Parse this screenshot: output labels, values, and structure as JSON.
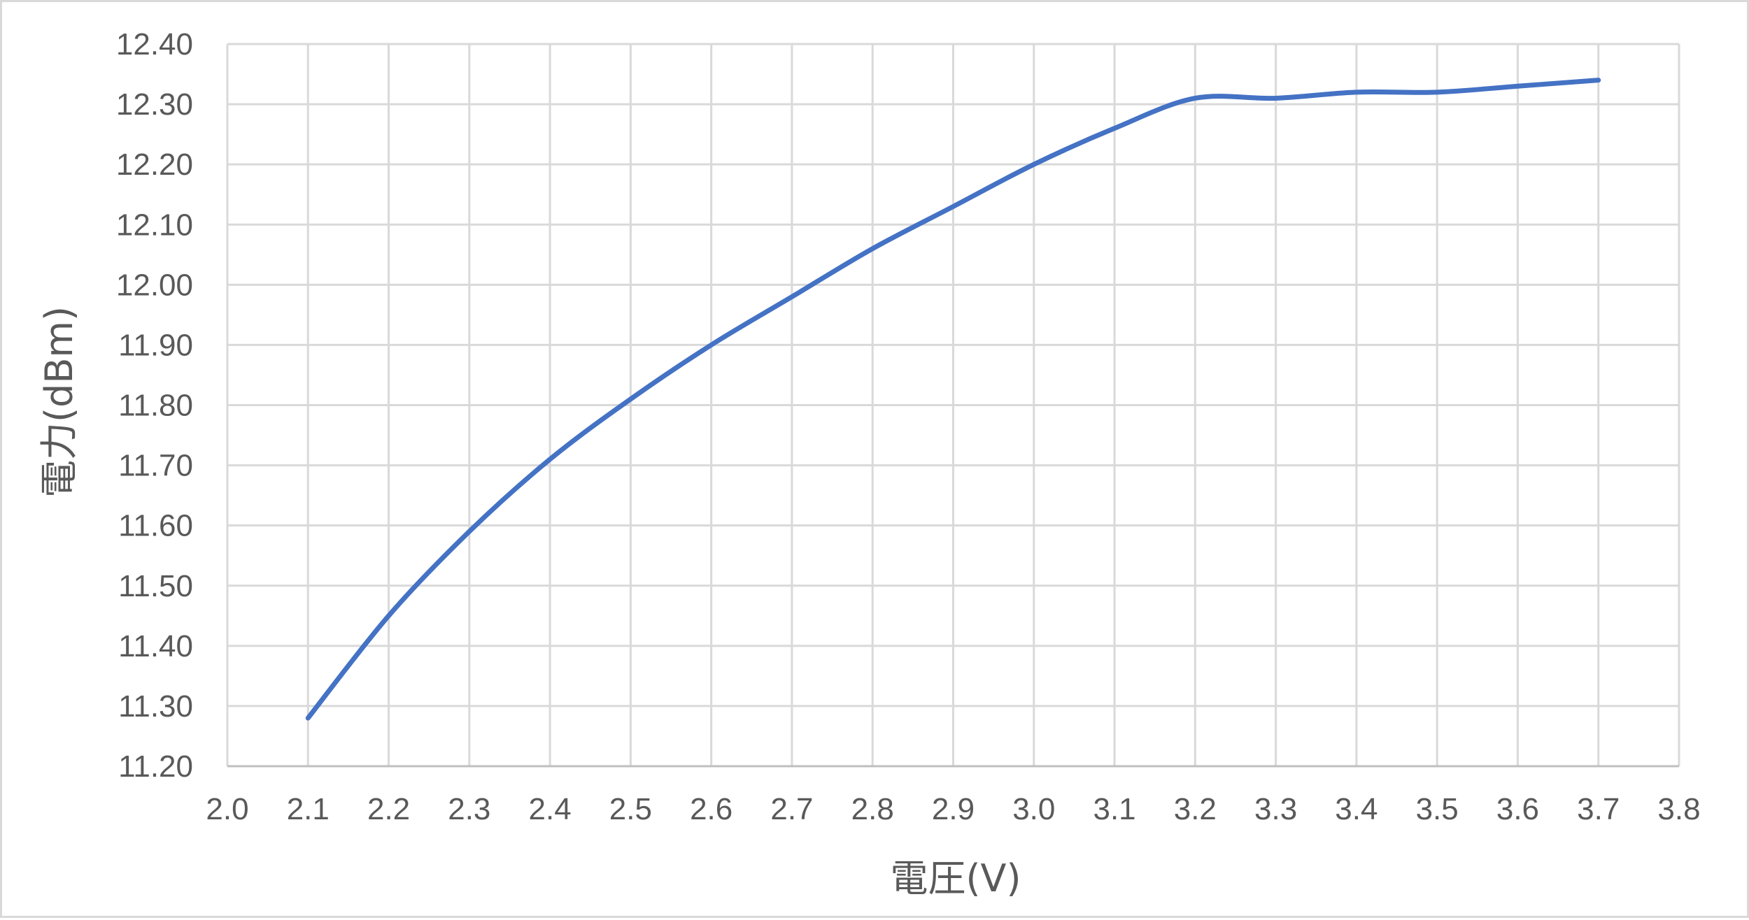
{
  "chart_data": {
    "type": "line",
    "title": "",
    "xlabel": "電圧(V)",
    "ylabel": "電力(dBm)",
    "xlim": [
      2.0,
      3.8
    ],
    "ylim": [
      11.2,
      12.4
    ],
    "x_ticks": [
      "2.0",
      "2.1",
      "2.2",
      "2.3",
      "2.4",
      "2.5",
      "2.6",
      "2.7",
      "2.8",
      "2.9",
      "3.0",
      "3.1",
      "3.2",
      "3.3",
      "3.4",
      "3.5",
      "3.6",
      "3.7",
      "3.8"
    ],
    "y_ticks": [
      "11.20",
      "11.30",
      "11.40",
      "11.50",
      "11.60",
      "11.70",
      "11.80",
      "11.90",
      "12.00",
      "12.10",
      "12.20",
      "12.30",
      "12.40"
    ],
    "grid": true,
    "legend": "none",
    "series": [
      {
        "color": "#4472c4",
        "smooth": true,
        "x": [
          2.1,
          2.2,
          2.3,
          2.4,
          2.5,
          2.6,
          2.7,
          2.8,
          2.9,
          3.0,
          3.1,
          3.2,
          3.3,
          3.4,
          3.5,
          3.6,
          3.7
        ],
        "y": [
          11.28,
          11.45,
          11.59,
          11.71,
          11.81,
          11.9,
          11.98,
          12.06,
          12.13,
          12.2,
          12.26,
          12.31,
          12.31,
          12.32,
          12.32,
          12.33,
          12.34
        ]
      }
    ]
  }
}
